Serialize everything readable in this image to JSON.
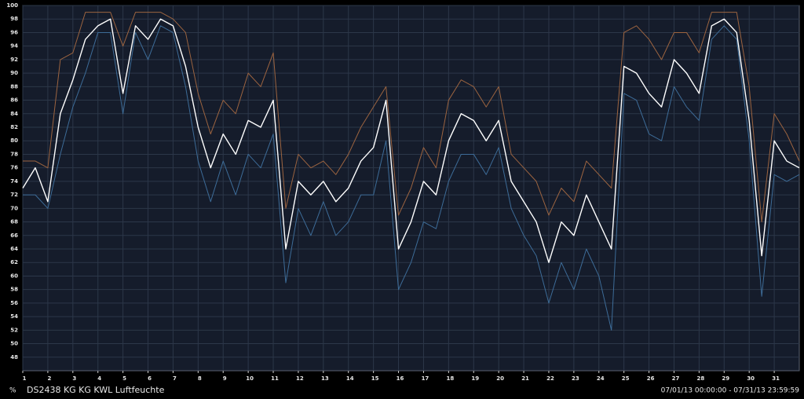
{
  "chart_data": {
    "type": "line",
    "title": "DS2438 KG KG KWL Luftfeuchte",
    "subtitle": "07/01/13 00:00:00 - 07/31/13 23:59:59",
    "y_label": "%",
    "grid": true,
    "xlim": [
      1,
      32
    ],
    "xticks": [
      1,
      2,
      3,
      4,
      5,
      6,
      7,
      8,
      9,
      10,
      11,
      12,
      13,
      14,
      15,
      16,
      17,
      18,
      19,
      20,
      21,
      22,
      23,
      24,
      25,
      26,
      27,
      28,
      29,
      30,
      31
    ],
    "ylim": [
      46,
      100
    ],
    "yticks": [
      48,
      50,
      52,
      54,
      56,
      58,
      60,
      62,
      64,
      66,
      68,
      70,
      72,
      74,
      76,
      78,
      80,
      82,
      84,
      86,
      88,
      90,
      92,
      94,
      96,
      98,
      100
    ],
    "x": [
      1,
      1.5,
      2,
      2.5,
      3,
      3.5,
      4,
      4.5,
      5,
      5.5,
      6,
      6.5,
      7,
      7.5,
      8,
      8.5,
      9,
      9.5,
      10,
      10.5,
      11,
      11.5,
      12,
      12.5,
      13,
      13.5,
      14,
      14.5,
      15,
      15.5,
      16,
      16.5,
      17,
      17.5,
      18,
      18.5,
      19,
      19.5,
      20,
      20.5,
      21,
      21.5,
      22,
      22.5,
      23,
      23.5,
      24,
      24.5,
      25,
      25.5,
      26,
      26.5,
      27,
      27.5,
      28,
      28.5,
      29,
      29.5,
      30,
      30.5,
      31,
      31.5,
      32
    ],
    "series": [
      {
        "color": "#3d6c98",
        "values": [
          72,
          72,
          70,
          78,
          85,
          90,
          96,
          96,
          84,
          96,
          92,
          97,
          96,
          88,
          77,
          71,
          77,
          72,
          78,
          76,
          81,
          59,
          70,
          66,
          71,
          66,
          68,
          72,
          72,
          80,
          58,
          62,
          68,
          67,
          74,
          78,
          78,
          75,
          79,
          70,
          66,
          63,
          56,
          62,
          58,
          64,
          60,
          52,
          87,
          86,
          81,
          80,
          88,
          85,
          83,
          95,
          97,
          95,
          80,
          57,
          75,
          74,
          75
        ]
      },
      {
        "color": "#9c6440",
        "values": [
          77,
          77,
          76,
          92,
          93,
          99,
          99,
          99,
          94,
          99,
          99,
          99,
          98,
          96,
          87,
          81,
          86,
          84,
          90,
          88,
          93,
          70,
          78,
          76,
          77,
          75,
          78,
          82,
          85,
          88,
          69,
          73,
          79,
          76,
          86,
          89,
          88,
          85,
          88,
          78,
          76,
          74,
          69,
          73,
          71,
          77,
          75,
          73,
          96,
          97,
          95,
          92,
          96,
          96,
          93,
          99,
          99,
          99,
          88,
          68,
          84,
          81,
          77
        ]
      },
      {
        "color": "#ffffff",
        "values": [
          73,
          76,
          71,
          84,
          89,
          95,
          97,
          98,
          87,
          97,
          95,
          98,
          97,
          91,
          82,
          76,
          81,
          78,
          83,
          82,
          86,
          64,
          74,
          72,
          74,
          71,
          73,
          77,
          79,
          86,
          64,
          68,
          74,
          72,
          80,
          84,
          83,
          80,
          83,
          74,
          71,
          68,
          62,
          68,
          66,
          72,
          68,
          64,
          91,
          90,
          87,
          85,
          92,
          90,
          87,
          97,
          98,
          96,
          83,
          63,
          80,
          77,
          76
        ]
      }
    ]
  }
}
